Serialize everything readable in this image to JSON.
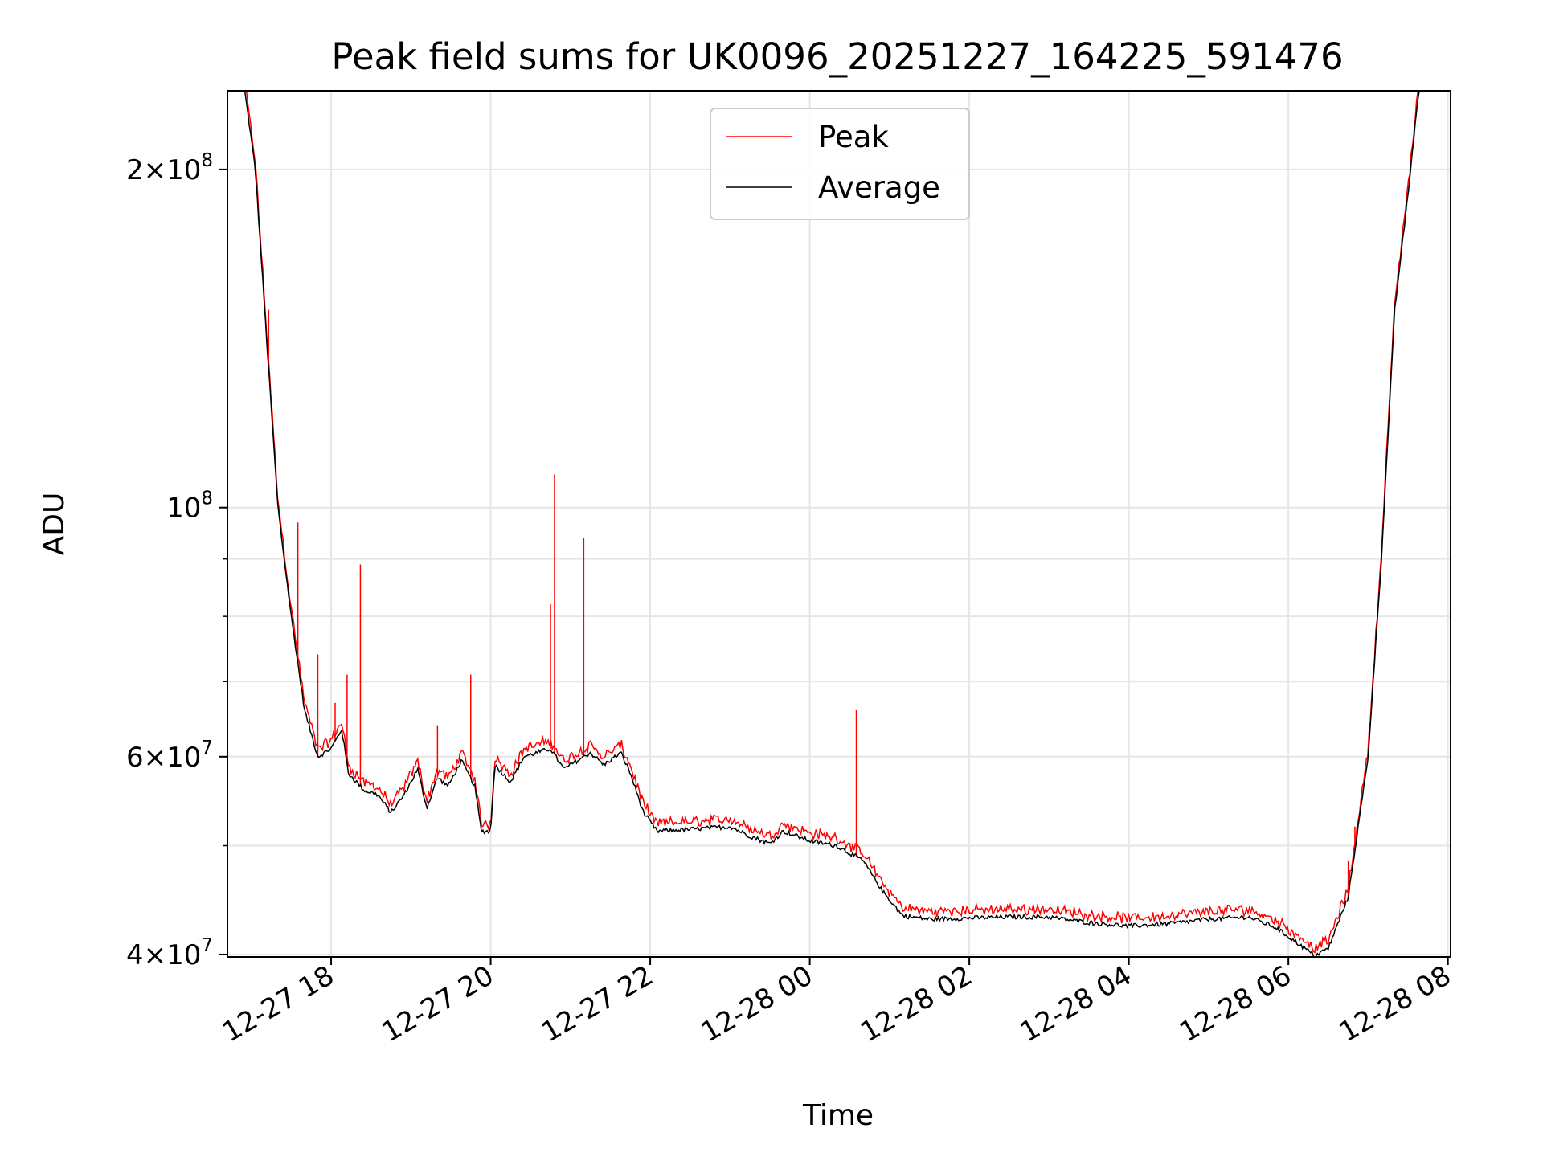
{
  "chart_data": {
    "type": "line",
    "title": "Peak field sums for UK0096_20251227_164225_591476",
    "xlabel": "Time",
    "ylabel": "ADU",
    "yscale": "log",
    "xlim": [
      "2025-12-27T16:42",
      "2025-12-28T08:02"
    ],
    "ylim": [
      39800000,
      235000000
    ],
    "grid": true,
    "legend_position": "top-center",
    "x_ticks": [
      {
        "t": "2025-12-27T18:00",
        "label": "12-27 18"
      },
      {
        "t": "2025-12-27T20:00",
        "label": "12-27 20"
      },
      {
        "t": "2025-12-27T22:00",
        "label": "12-27 22"
      },
      {
        "t": "2025-12-28T00:00",
        "label": "12-28 00"
      },
      {
        "t": "2025-12-28T02:00",
        "label": "12-28 02"
      },
      {
        "t": "2025-12-28T04:00",
        "label": "12-28 04"
      },
      {
        "t": "2025-12-28T06:00",
        "label": "12-28 06"
      },
      {
        "t": "2025-12-28T08:00",
        "label": "12-28 08"
      }
    ],
    "y_major_ticks": [
      {
        "v": 40000000,
        "mant": "4",
        "exp": "7"
      },
      {
        "v": 60000000,
        "mant": "6",
        "exp": "7"
      },
      {
        "v": 100000000,
        "mant": "",
        "exp": "8"
      },
      {
        "v": 200000000,
        "mant": "2",
        "exp": "8"
      }
    ],
    "y_minor_grid": [
      50000000,
      70000000,
      80000000,
      90000000
    ],
    "series": [
      {
        "name": "Average",
        "color": "#000000",
        "points": [
          [
            "2025-12-27T16:42",
            235000000
          ],
          [
            "2025-12-27T16:55",
            235000000
          ],
          [
            "2025-12-27T17:03",
            200000000
          ],
          [
            "2025-12-27T17:10",
            150000000
          ],
          [
            "2025-12-27T17:20",
            100000000
          ],
          [
            "2025-12-27T17:30",
            80000000
          ],
          [
            "2025-12-27T17:40",
            66000000
          ],
          [
            "2025-12-27T17:50",
            60000000
          ],
          [
            "2025-12-27T18:00",
            61000000
          ],
          [
            "2025-12-27T18:08",
            63500000
          ],
          [
            "2025-12-27T18:13",
            58000000
          ],
          [
            "2025-12-27T18:25",
            56000000
          ],
          [
            "2025-12-27T18:35",
            55500000
          ],
          [
            "2025-12-27T18:45",
            53500000
          ],
          [
            "2025-12-27T18:55",
            55500000
          ],
          [
            "2025-12-27T19:05",
            58500000
          ],
          [
            "2025-12-27T19:12",
            54000000
          ],
          [
            "2025-12-27T19:20",
            57500000
          ],
          [
            "2025-12-27T19:28",
            56500000
          ],
          [
            "2025-12-27T19:38",
            59500000
          ],
          [
            "2025-12-27T19:48",
            56500000
          ],
          [
            "2025-12-27T19:53",
            51500000
          ],
          [
            "2025-12-27T20:00",
            51500000
          ],
          [
            "2025-12-27T20:03",
            59000000
          ],
          [
            "2025-12-27T20:15",
            57000000
          ],
          [
            "2025-12-27T20:25",
            60000000
          ],
          [
            "2025-12-27T20:35",
            60500000
          ],
          [
            "2025-12-27T20:45",
            61000000
          ],
          [
            "2025-12-27T20:55",
            58500000
          ],
          [
            "2025-12-27T21:05",
            59500000
          ],
          [
            "2025-12-27T21:15",
            60500000
          ],
          [
            "2025-12-27T21:25",
            59000000
          ],
          [
            "2025-12-27T21:38",
            60500000
          ],
          [
            "2025-12-27T21:45",
            58000000
          ],
          [
            "2025-12-27T21:55",
            53500000
          ],
          [
            "2025-12-27T22:05",
            51500000
          ],
          [
            "2025-12-27T22:30",
            51700000
          ],
          [
            "2025-12-27T23:00",
            52000000
          ],
          [
            "2025-12-27T23:15",
            51000000
          ],
          [
            "2025-12-27T23:30",
            50200000
          ],
          [
            "2025-12-27T23:40",
            51500000
          ],
          [
            "2025-12-27T23:50",
            51000000
          ],
          [
            "2025-12-28T00:00",
            50500000
          ],
          [
            "2025-12-28T00:20",
            50000000
          ],
          [
            "2025-12-28T00:40",
            48500000
          ],
          [
            "2025-12-28T00:55",
            45500000
          ],
          [
            "2025-12-28T01:10",
            43300000
          ],
          [
            "2025-12-28T01:30",
            43000000
          ],
          [
            "2025-12-28T02:00",
            43100000
          ],
          [
            "2025-12-28T02:30",
            43200000
          ],
          [
            "2025-12-28T03:00",
            43200000
          ],
          [
            "2025-12-28T03:30",
            42700000
          ],
          [
            "2025-12-28T04:00",
            42400000
          ],
          [
            "2025-12-28T04:30",
            42600000
          ],
          [
            "2025-12-28T05:00",
            43000000
          ],
          [
            "2025-12-28T05:30",
            43200000
          ],
          [
            "2025-12-28T05:50",
            42300000
          ],
          [
            "2025-12-28T06:10",
            40700000
          ],
          [
            "2025-12-28T06:20",
            39900000
          ],
          [
            "2025-12-28T06:30",
            40500000
          ],
          [
            "2025-12-28T06:45",
            45000000
          ],
          [
            "2025-12-28T07:00",
            60000000
          ],
          [
            "2025-12-28T07:10",
            90000000
          ],
          [
            "2025-12-28T07:20",
            150000000
          ],
          [
            "2025-12-28T07:30",
            190000000
          ],
          [
            "2025-12-28T07:38",
            235000000
          ],
          [
            "2025-12-28T08:02",
            235000000
          ]
        ]
      },
      {
        "name": "Peak",
        "color": "#ff0000",
        "offset_factor": 1.018,
        "spikes": [
          [
            "2025-12-27T17:13",
            150000000
          ],
          [
            "2025-12-27T17:35",
            97000000
          ],
          [
            "2025-12-27T17:50",
            74000000
          ],
          [
            "2025-12-27T18:03",
            67000000
          ],
          [
            "2025-12-27T18:12",
            71000000
          ],
          [
            "2025-12-27T18:22",
            89000000
          ],
          [
            "2025-12-27T19:20",
            64000000
          ],
          [
            "2025-12-27T19:45",
            71000000
          ],
          [
            "2025-12-27T20:45",
            82000000
          ],
          [
            "2025-12-27T20:48",
            107000000
          ],
          [
            "2025-12-27T21:10",
            94000000
          ],
          [
            "2025-12-28T00:35",
            66000000
          ],
          [
            "2025-12-28T06:45",
            48500000
          ],
          [
            "2025-12-28T06:50",
            52000000
          ]
        ]
      }
    ]
  }
}
